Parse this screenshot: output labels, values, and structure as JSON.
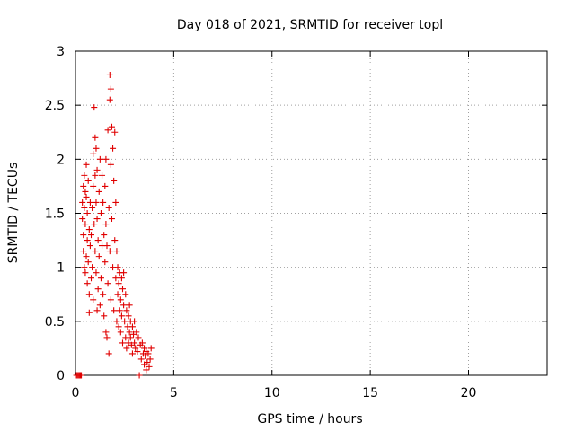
{
  "chart_data": {
    "type": "scatter",
    "title": "Day 018 of 2021, SRMTID for receiver topl",
    "xlabel": "GPS time / hours",
    "ylabel": "SRMTID / TECUs",
    "xlim": [
      0,
      24
    ],
    "ylim": [
      0,
      3
    ],
    "xticks": [
      0,
      5,
      10,
      15,
      20
    ],
    "yticks": [
      0,
      0.5,
      1,
      1.5,
      2,
      2.5,
      3
    ],
    "xtick_labels": [
      "0",
      "5",
      "10",
      "15",
      "20"
    ],
    "ytick_labels": [
      "0",
      "0.5",
      "1",
      "1.5",
      "2",
      "2.5",
      "3"
    ],
    "grid": true,
    "marker": "+",
    "color": "#e00000",
    "series": [
      {
        "name": "topl",
        "points": [
          [
            0.05,
            0.0
          ],
          [
            0.1,
            0.0
          ],
          [
            0.15,
            0.0
          ],
          [
            0.2,
            0.0
          ],
          [
            0.25,
            0.0
          ],
          [
            0.3,
            0.0
          ],
          [
            0.35,
            1.6
          ],
          [
            0.35,
            1.45
          ],
          [
            0.4,
            1.75
          ],
          [
            0.4,
            1.3
          ],
          [
            0.4,
            1.15
          ],
          [
            0.45,
            1.85
          ],
          [
            0.45,
            1.55
          ],
          [
            0.45,
            1.0
          ],
          [
            0.5,
            1.7
          ],
          [
            0.5,
            1.4
          ],
          [
            0.5,
            0.95
          ],
          [
            0.55,
            1.95
          ],
          [
            0.55,
            1.65
          ],
          [
            0.55,
            1.1
          ],
          [
            0.6,
            1.5
          ],
          [
            0.6,
            0.85
          ],
          [
            0.6,
            1.25
          ],
          [
            0.65,
            1.8
          ],
          [
            0.65,
            1.05
          ],
          [
            0.7,
            0.75
          ],
          [
            0.7,
            1.35
          ],
          [
            0.7,
            0.58
          ],
          [
            0.75,
            1.6
          ],
          [
            0.75,
            1.2
          ],
          [
            0.8,
            1.3
          ],
          [
            0.8,
            0.9
          ],
          [
            0.85,
            1.0
          ],
          [
            0.85,
            1.55
          ],
          [
            0.9,
            2.05
          ],
          [
            0.9,
            1.75
          ],
          [
            0.9,
            0.7
          ],
          [
            0.95,
            2.48
          ],
          [
            0.95,
            1.4
          ],
          [
            1.0,
            2.2
          ],
          [
            1.0,
            1.85
          ],
          [
            1.0,
            1.15
          ],
          [
            1.05,
            2.1
          ],
          [
            1.05,
            1.6
          ],
          [
            1.05,
            0.95
          ],
          [
            1.1,
            1.9
          ],
          [
            1.1,
            1.45
          ],
          [
            1.1,
            0.6
          ],
          [
            1.15,
            1.25
          ],
          [
            1.15,
            0.8
          ],
          [
            1.2,
            1.7
          ],
          [
            1.2,
            1.1
          ],
          [
            1.25,
            2.0
          ],
          [
            1.25,
            0.65
          ],
          [
            1.3,
            1.5
          ],
          [
            1.3,
            0.9
          ],
          [
            1.35,
            1.85
          ],
          [
            1.35,
            1.2
          ],
          [
            1.4,
            1.6
          ],
          [
            1.4,
            0.75
          ],
          [
            1.45,
            1.3
          ],
          [
            1.45,
            0.55
          ],
          [
            1.5,
            1.05
          ],
          [
            1.5,
            1.75
          ],
          [
            1.55,
            2.0
          ],
          [
            1.55,
            1.4
          ],
          [
            1.55,
            0.4
          ],
          [
            1.6,
            1.2
          ],
          [
            1.6,
            0.35
          ],
          [
            1.65,
            2.27
          ],
          [
            1.65,
            0.85
          ],
          [
            1.7,
            1.55
          ],
          [
            1.7,
            0.2
          ],
          [
            1.75,
            2.78
          ],
          [
            1.75,
            2.55
          ],
          [
            1.75,
            1.15
          ],
          [
            1.8,
            2.65
          ],
          [
            1.8,
            1.95
          ],
          [
            1.8,
            0.7
          ],
          [
            1.85,
            2.3
          ],
          [
            1.85,
            1.45
          ],
          [
            1.9,
            2.1
          ],
          [
            1.9,
            1.0
          ],
          [
            1.95,
            1.8
          ],
          [
            1.95,
            0.6
          ],
          [
            2.0,
            2.25
          ],
          [
            2.0,
            1.25
          ],
          [
            2.05,
            1.6
          ],
          [
            2.05,
            0.9
          ],
          [
            2.1,
            1.15
          ],
          [
            2.1,
            0.5
          ],
          [
            2.15,
            1.0
          ],
          [
            2.15,
            0.75
          ],
          [
            2.2,
            0.85
          ],
          [
            2.2,
            0.45
          ],
          [
            2.25,
            0.95
          ],
          [
            2.25,
            0.6
          ],
          [
            2.3,
            0.7
          ],
          [
            2.3,
            0.4
          ],
          [
            2.35,
            0.9
          ],
          [
            2.35,
            0.55
          ],
          [
            2.4,
            0.8
          ],
          [
            2.4,
            0.3
          ],
          [
            2.45,
            0.65
          ],
          [
            2.45,
            0.95
          ],
          [
            2.5,
            0.5
          ],
          [
            2.55,
            0.75
          ],
          [
            2.55,
            0.35
          ],
          [
            2.6,
            0.6
          ],
          [
            2.6,
            0.25
          ],
          [
            2.65,
            0.45
          ],
          [
            2.7,
            0.55
          ],
          [
            2.7,
            0.3
          ],
          [
            2.75,
            0.4
          ],
          [
            2.75,
            0.65
          ],
          [
            2.8,
            0.35
          ],
          [
            2.8,
            0.5
          ],
          [
            2.85,
            0.28
          ],
          [
            2.9,
            0.45
          ],
          [
            2.9,
            0.2
          ],
          [
            2.95,
            0.38
          ],
          [
            3.0,
            0.3
          ],
          [
            3.0,
            0.5
          ],
          [
            3.05,
            0.25
          ],
          [
            3.1,
            0.4
          ],
          [
            3.15,
            0.22
          ],
          [
            3.2,
            0.35
          ],
          [
            3.25,
            0.0
          ],
          [
            3.3,
            0.28
          ],
          [
            3.35,
            0.15
          ],
          [
            3.4,
            0.3
          ],
          [
            3.45,
            0.2
          ],
          [
            3.5,
            0.1
          ],
          [
            3.5,
            0.25
          ],
          [
            3.55,
            0.18
          ],
          [
            3.6,
            0.05
          ],
          [
            3.6,
            0.22
          ],
          [
            3.65,
            0.12
          ],
          [
            3.7,
            0.2
          ],
          [
            3.75,
            0.08
          ],
          [
            3.8,
            0.15
          ],
          [
            3.85,
            0.25
          ]
        ]
      }
    ]
  }
}
